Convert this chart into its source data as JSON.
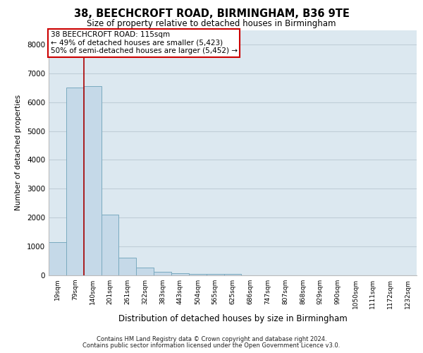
{
  "title_line1": "38, BEECHCROFT ROAD, BIRMINGHAM, B36 9TE",
  "title_line2": "Size of property relative to detached houses in Birmingham",
  "xlabel": "Distribution of detached houses by size in Birmingham",
  "ylabel": "Number of detached properties",
  "footer_line1": "Contains HM Land Registry data © Crown copyright and database right 2024.",
  "footer_line2": "Contains public sector information licensed under the Open Government Licence v3.0.",
  "categories": [
    "19sqm",
    "79sqm",
    "140sqm",
    "201sqm",
    "261sqm",
    "322sqm",
    "383sqm",
    "443sqm",
    "504sqm",
    "565sqm",
    "625sqm",
    "686sqm",
    "747sqm",
    "807sqm",
    "868sqm",
    "929sqm",
    "990sqm",
    "1050sqm",
    "1111sqm",
    "1172sqm",
    "1232sqm"
  ],
  "values": [
    1150,
    6500,
    6550,
    2100,
    600,
    280,
    130,
    80,
    55,
    45,
    50,
    0,
    0,
    0,
    0,
    0,
    0,
    0,
    0,
    0,
    0
  ],
  "bar_color": "#c5d9e8",
  "bar_edge_color": "#7aaabf",
  "vline_x_index": 1.5,
  "vline_color": "#aa0000",
  "annotation_box_text": "38 BEECHCROFT ROAD: 115sqm\n← 49% of detached houses are smaller (5,423)\n50% of semi-detached houses are larger (5,452) →",
  "annotation_box_color": "#cc0000",
  "annotation_box_fill": "#ffffff",
  "ylim": [
    0,
    8500
  ],
  "yticks": [
    0,
    1000,
    2000,
    3000,
    4000,
    5000,
    6000,
    7000,
    8000
  ],
  "grid_color": "#c0ced8",
  "bg_color": "#dce8f0"
}
